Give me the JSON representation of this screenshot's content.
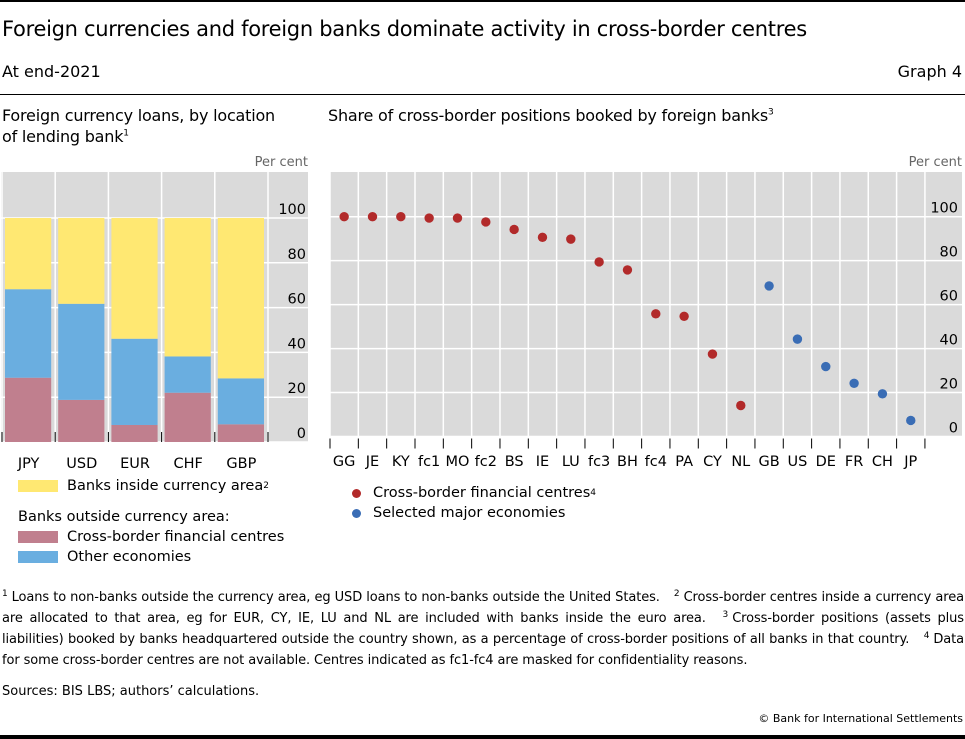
{
  "header": {
    "title": "Foreign currencies and foreign banks dominate activity in cross-border centres",
    "subtitle": "At end-2021",
    "graph_number": "Graph 4"
  },
  "colors": {
    "plot_bg": "#DADADA",
    "grid": "#FFFFFF",
    "banks_inside": "#FFE872",
    "cross_border_centres": "#C07F8E",
    "other_economies": "#6AAEE0",
    "dot_cross_border": "#B22A2A",
    "dot_major": "#3A6DB5"
  },
  "chart_data": [
    {
      "id": "left",
      "type": "bar",
      "stacked": true,
      "title": "Foreign currency loans, by location of lending bank",
      "title_lines": [
        "Foreign currency loans, by location",
        "of lending bank"
      ],
      "title_footnote": "1",
      "unit": "Per cent",
      "ylim": [
        0,
        100
      ],
      "yticks": [
        0,
        20,
        40,
        60,
        80,
        100
      ],
      "y_axis_position": "right",
      "grid": true,
      "categories": [
        "JPY",
        "USD",
        "EUR",
        "CHF",
        "GBP"
      ],
      "series": [
        {
          "name": "Cross-border financial centres",
          "key": "cross_border_centres",
          "values": [
            28.7,
            18.8,
            7.6,
            22.0,
            7.9
          ]
        },
        {
          "name": "Other economies",
          "key": "other_economies",
          "values": [
            39.5,
            42.9,
            38.5,
            16.2,
            20.5
          ]
        },
        {
          "name": "Banks inside currency area",
          "key": "banks_inside",
          "values": [
            31.8,
            38.3,
            53.9,
            61.8,
            71.6
          ]
        }
      ],
      "legend": {
        "placement": "bottom",
        "inside_label": "Banks inside currency area",
        "inside_footnote": "2",
        "group_heading": "Banks outside currency area:",
        "items": [
          {
            "label": "Cross-border financial centres",
            "key": "cross_border_centres"
          },
          {
            "label": "Other economies",
            "key": "other_economies"
          }
        ]
      }
    },
    {
      "id": "right",
      "type": "scatter",
      "title": "Share of cross-border positions booked by foreign banks",
      "title_footnote": "3",
      "unit": "Per cent",
      "ylim": [
        0,
        100
      ],
      "yticks": [
        0,
        20,
        40,
        60,
        80,
        100
      ],
      "y_axis_position": "right",
      "grid": true,
      "categories": [
        "GG",
        "JE",
        "KY",
        "fc1",
        "MO",
        "fc2",
        "BS",
        "IE",
        "LU",
        "fc3",
        "BH",
        "fc4",
        "PA",
        "CY",
        "NL",
        "GB",
        "US",
        "DE",
        "FR",
        "CH",
        "JP"
      ],
      "series": [
        {
          "name": "Cross-border financial centres",
          "footnote": "4",
          "key": "dot_cross_border",
          "categories": [
            "GG",
            "JE",
            "KY",
            "fc1",
            "MO",
            "fc2",
            "BS",
            "IE",
            "LU",
            "fc3",
            "BH",
            "fc4",
            "PA",
            "CY",
            "NL"
          ],
          "values": [
            100,
            100,
            100,
            99.4,
            99.4,
            97.6,
            94.2,
            90.6,
            89.8,
            79.4,
            75.8,
            55.8,
            54.7,
            37.5,
            14.1
          ]
        },
        {
          "name": "Selected major economies",
          "footnote": "",
          "key": "dot_major",
          "categories": [
            "GB",
            "US",
            "DE",
            "FR",
            "CH",
            "JP"
          ],
          "values": [
            68.5,
            44.3,
            31.8,
            24.2,
            19.4,
            7.3
          ]
        }
      ],
      "legend": {
        "placement": "bottom-left"
      }
    }
  ],
  "footnotes": [
    {
      "num": "1",
      "text": "Loans to non-banks outside the currency area, eg USD loans to non-banks outside the United States."
    },
    {
      "num": "2",
      "text": "Cross-border centres inside a currency area are allocated to that area, eg for EUR, CY, IE, LU and NL are included with banks inside the euro area."
    },
    {
      "num": "3",
      "text": "Cross-border positions (assets plus liabilities) booked by banks headquartered outside the country shown, as a percentage of cross-border positions of all banks in that country."
    },
    {
      "num": "4",
      "text": "Data for some cross-border centres are not available. Centres indicated as fc1-fc4 are masked for confidentiality reasons."
    }
  ],
  "sources": "Sources: BIS LBS; authors’ calculations.",
  "copyright": "© Bank for International Settlements"
}
